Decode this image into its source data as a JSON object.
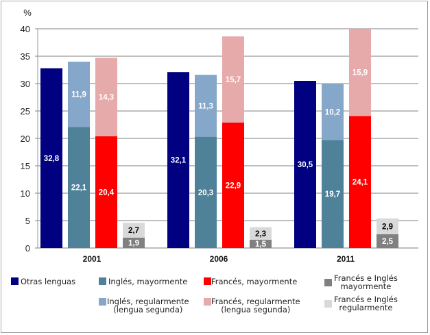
{
  "chart_data": {
    "type": "bar",
    "stacked_groups": true,
    "title": "",
    "ylabel": "%",
    "xlabel": "",
    "ylim": [
      0,
      40
    ],
    "yticks": [
      0,
      5,
      10,
      15,
      20,
      25,
      30,
      35,
      40
    ],
    "grid": true,
    "categories": [
      "2001",
      "2006",
      "2011"
    ],
    "bars": [
      {
        "name": "Otras lenguas",
        "segments": [
          {
            "series": "Otras lenguas",
            "values": [
              32.8,
              32.1,
              30.5
            ],
            "labels": [
              "32,8",
              "32,1",
              "30,5"
            ]
          }
        ]
      },
      {
        "name": "Inglés",
        "segments": [
          {
            "series": "Inglés, mayormente",
            "values": [
              22.1,
              20.3,
              19.7
            ],
            "labels": [
              "22,1",
              "20,3",
              "19,7"
            ]
          },
          {
            "series": "Inglés, regularmente (lengua segunda)",
            "values": [
              11.9,
              11.3,
              10.2
            ],
            "labels": [
              "11,9",
              "11,3",
              "10,2"
            ]
          }
        ]
      },
      {
        "name": "Francés",
        "segments": [
          {
            "series": "Francés, mayormente",
            "values": [
              20.4,
              22.9,
              24.1
            ],
            "labels": [
              "20,4",
              "22,9",
              "24,1"
            ]
          },
          {
            "series": "Francés, regularmente (lengua segunda)",
            "values": [
              14.3,
              15.7,
              15.9
            ],
            "labels": [
              "14,3",
              "15,7",
              "15,9"
            ]
          }
        ]
      },
      {
        "name": "Francés e Inglés",
        "segments": [
          {
            "series": "Francés e Inglés mayormente",
            "values": [
              1.9,
              1.5,
              2.5
            ],
            "labels": [
              "1,9",
              "1,5",
              "2,5"
            ]
          },
          {
            "series": "Francés e Inglés regularmente",
            "values": [
              2.7,
              2.3,
              2.9
            ],
            "labels": [
              "2,7",
              "2,3",
              "2,9"
            ]
          }
        ]
      }
    ],
    "series": [
      {
        "name": "Otras lenguas",
        "color": "#000080",
        "label_color": "#ffffff"
      },
      {
        "name": "Inglés, mayormente",
        "color": "#4f8198",
        "label_color": "#ffffff"
      },
      {
        "name": "Francés, mayormente",
        "color": "#ff0000",
        "label_color": "#ffffff"
      },
      {
        "name": "Francés e Inglés mayormente",
        "color": "#808080",
        "label_color": "#ffffff"
      },
      {
        "name": "Inglés, regularmente (lengua segunda)",
        "color": "#85a7c9",
        "label_color": "#ffffff"
      },
      {
        "name": "Francés, regularmente (lengua segunda)",
        "color": "#e6aaaa",
        "label_color": "#ffffff"
      },
      {
        "name": "Francés e Inglés regularmente",
        "color": "#d9d9d9",
        "label_color": "#000000"
      }
    ],
    "legend": {
      "placement": "bottom",
      "items": [
        {
          "label": "Otras lenguas",
          "color": "#000080"
        },
        {
          "label": "Inglés, mayormente",
          "color": "#4f8198"
        },
        {
          "label": "Francés, mayormente",
          "color": "#ff0000"
        },
        {
          "label": "Francés e Inglés\nmayormente",
          "color": "#808080"
        },
        {
          "label": "Inglés, regularmente\n(lengua segunda)",
          "color": "#85a7c9"
        },
        {
          "label": "Francés, regularmente\n(lengua segunda)",
          "color": "#e6aaaa"
        },
        {
          "label": "Francés e Inglés\nregularmente",
          "color": "#d9d9d9"
        }
      ]
    }
  }
}
